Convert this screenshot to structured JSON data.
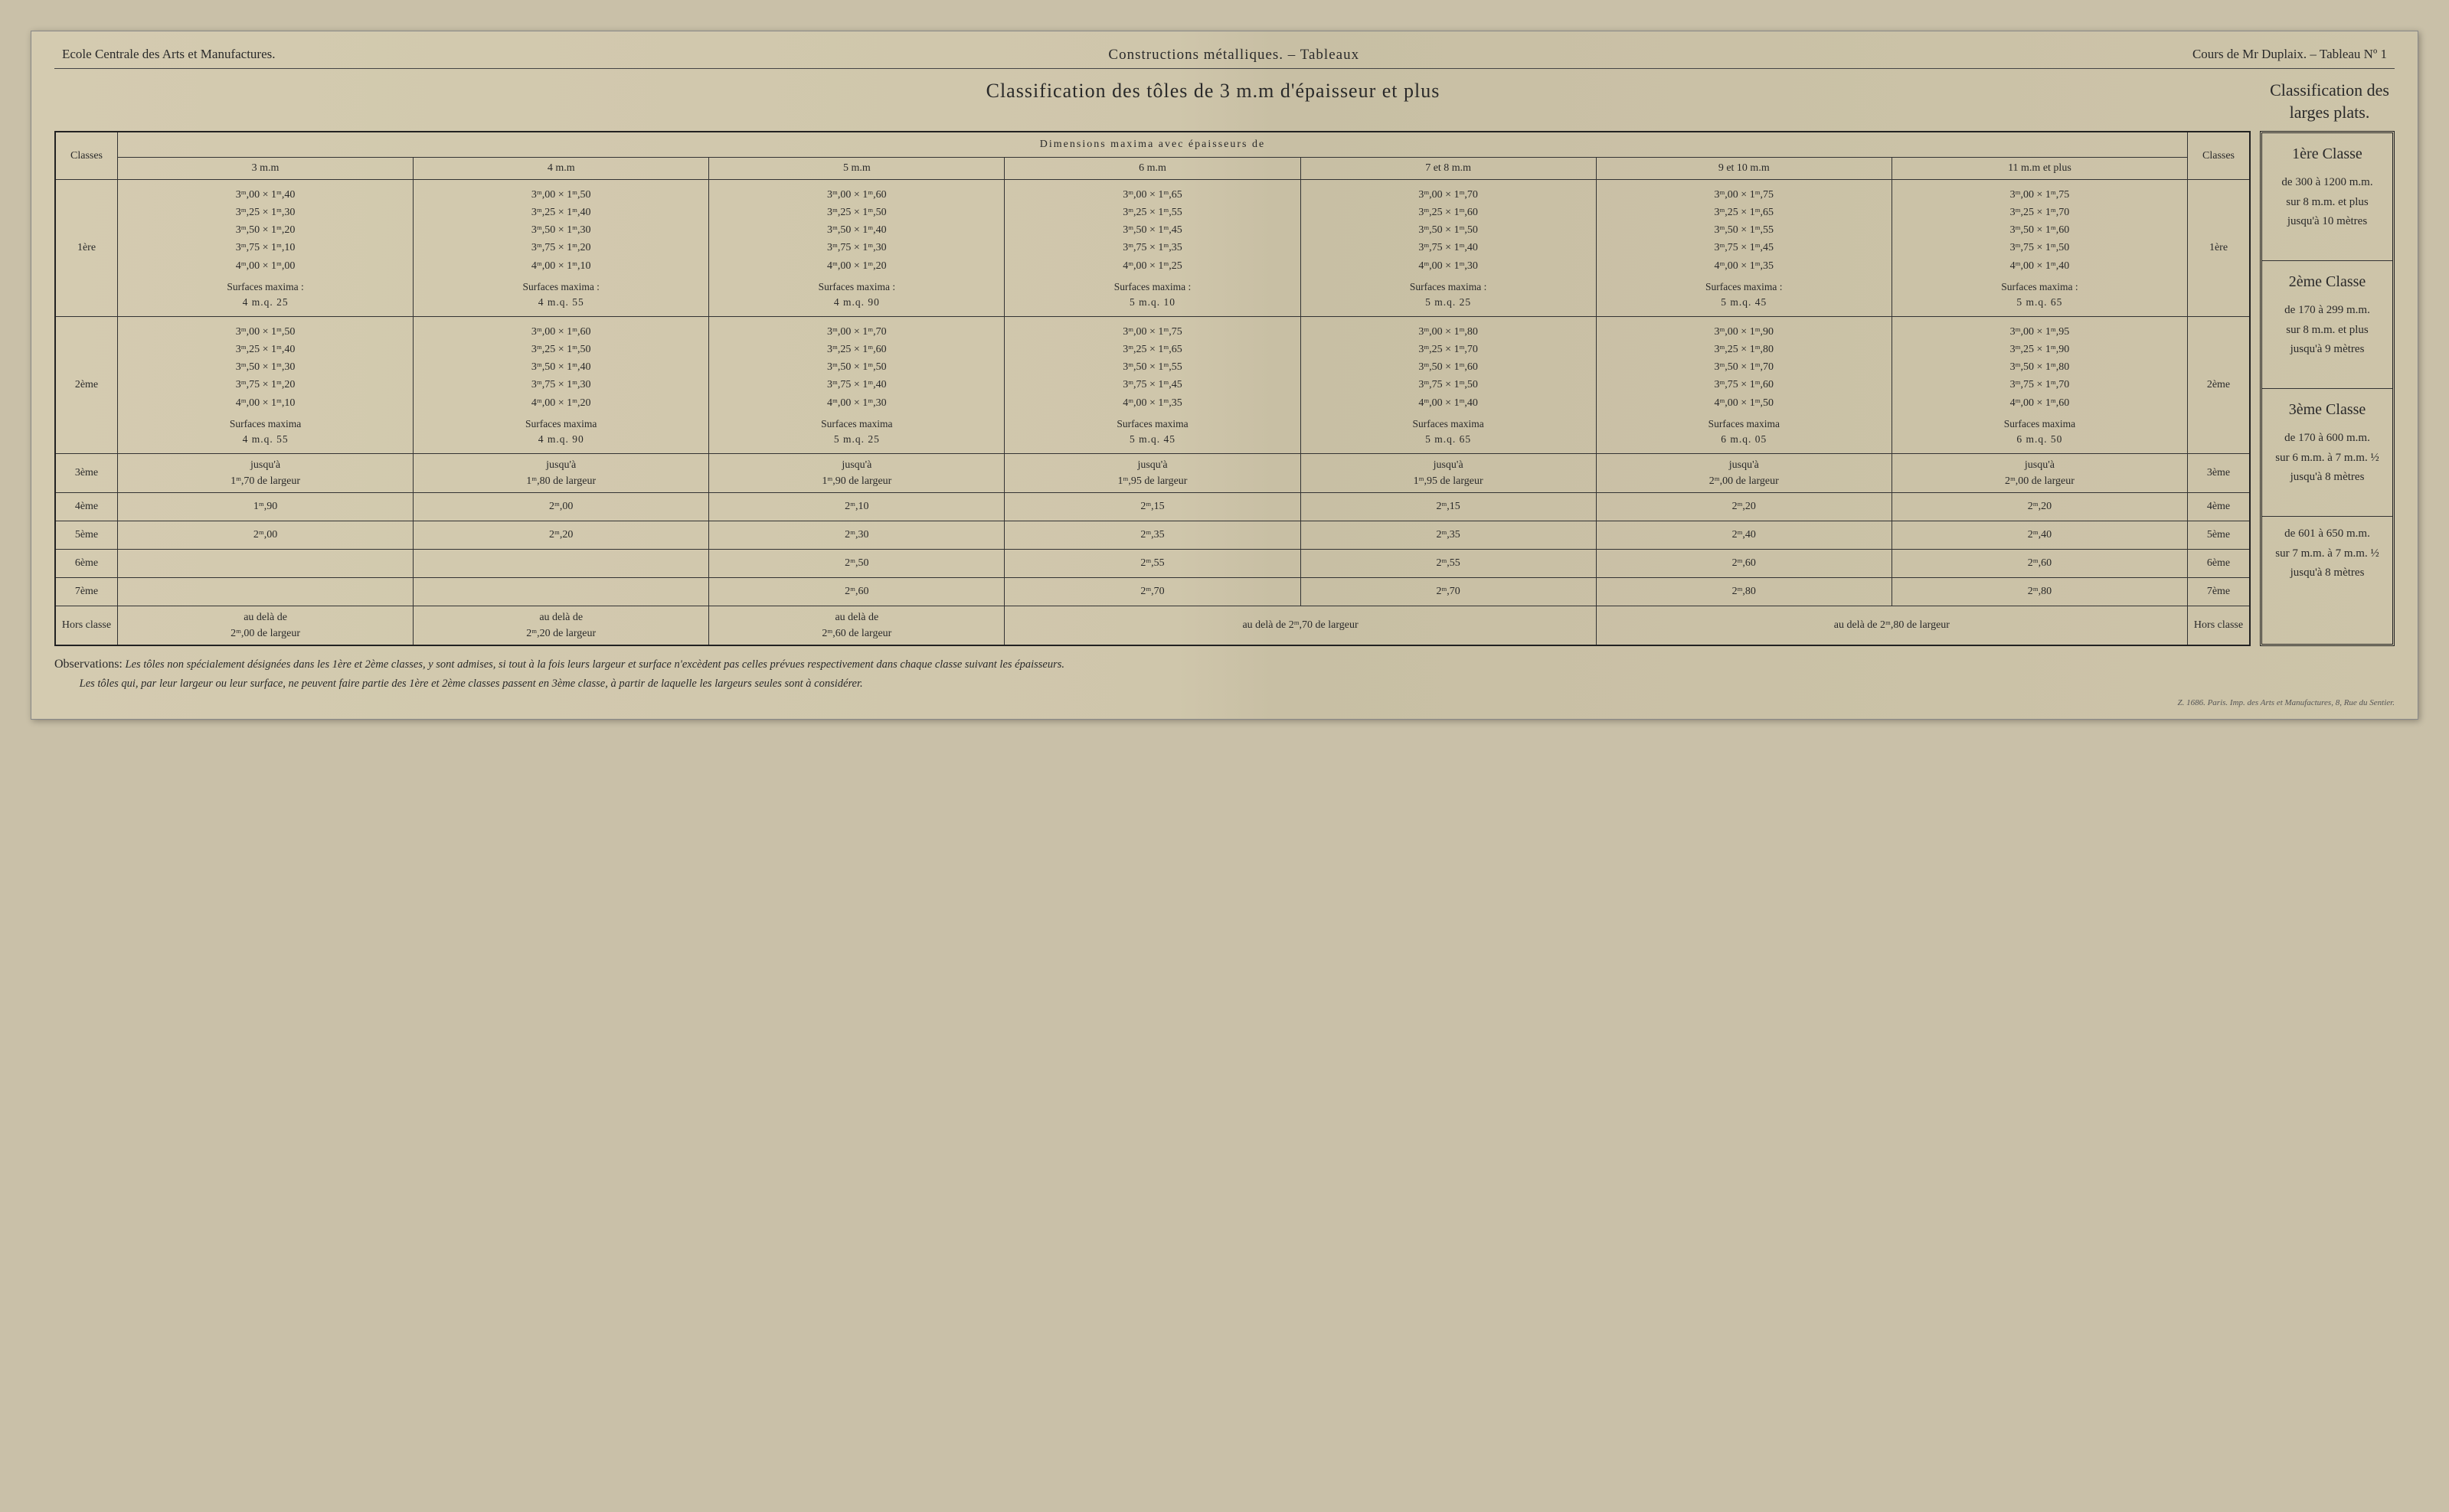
{
  "header": {
    "left": "Ecole Centrale des Arts et Manufactures.",
    "center": "Constructions métalliques. – Tableaux",
    "right": "Cours de Mr Duplaix. – Tableau Nº 1"
  },
  "titles": {
    "main": "Classification des tôles de 3 m.m d'épaisseur et plus",
    "side": "Classification des larges plats."
  },
  "table": {
    "classes_header": "Classes",
    "dimensions_header": "Dimensions maxima avec épaisseurs de",
    "thickness_cols": [
      "3 m.m",
      "4 m.m",
      "5 m.m",
      "6 m.m",
      "7 et 8 m.m",
      "9 et 10 m.m",
      "11 m.m et plus"
    ],
    "class_labels": [
      "1ère",
      "2ème",
      "3ème",
      "4ème",
      "5ème",
      "6ème",
      "7ème"
    ],
    "hors_classe_label": "Hors classe",
    "row1": {
      "cells": [
        {
          "dims": [
            "3ᵐ,00 × 1ᵐ,40",
            "3ᵐ,25 × 1ᵐ,30",
            "3ᵐ,50 × 1ᵐ,20",
            "3ᵐ,75 × 1ᵐ,10",
            "4ᵐ,00 × 1ᵐ,00"
          ],
          "surf": "Surfaces maxima :",
          "mq": "4 m.q. 25"
        },
        {
          "dims": [
            "3ᵐ,00 × 1ᵐ,50",
            "3ᵐ,25 × 1ᵐ,40",
            "3ᵐ,50 × 1ᵐ,30",
            "3ᵐ,75 × 1ᵐ,20",
            "4ᵐ,00 × 1ᵐ,10"
          ],
          "surf": "Surfaces maxima :",
          "mq": "4 m.q. 55"
        },
        {
          "dims": [
            "3ᵐ,00 × 1ᵐ,60",
            "3ᵐ,25 × 1ᵐ,50",
            "3ᵐ,50 × 1ᵐ,40",
            "3ᵐ,75 × 1ᵐ,30",
            "4ᵐ,00 × 1ᵐ,20"
          ],
          "surf": "Surfaces maxima :",
          "mq": "4 m.q. 90"
        },
        {
          "dims": [
            "3ᵐ,00 × 1ᵐ,65",
            "3ᵐ,25 × 1ᵐ,55",
            "3ᵐ,50 × 1ᵐ,45",
            "3ᵐ,75 × 1ᵐ,35",
            "4ᵐ,00 × 1ᵐ,25"
          ],
          "surf": "Surfaces maxima :",
          "mq": "5 m.q. 10"
        },
        {
          "dims": [
            "3ᵐ,00 × 1ᵐ,70",
            "3ᵐ,25 × 1ᵐ,60",
            "3ᵐ,50 × 1ᵐ,50",
            "3ᵐ,75 × 1ᵐ,40",
            "4ᵐ,00 × 1ᵐ,30"
          ],
          "surf": "Surfaces maxima :",
          "mq": "5 m.q. 25"
        },
        {
          "dims": [
            "3ᵐ,00 × 1ᵐ,75",
            "3ᵐ,25 × 1ᵐ,65",
            "3ᵐ,50 × 1ᵐ,55",
            "3ᵐ,75 × 1ᵐ,45",
            "4ᵐ,00 × 1ᵐ,35"
          ],
          "surf": "Surfaces maxima :",
          "mq": "5 m.q. 45"
        },
        {
          "dims": [
            "3ᵐ,00 × 1ᵐ,75",
            "3ᵐ,25 × 1ᵐ,70",
            "3ᵐ,50 × 1ᵐ,60",
            "3ᵐ,75 × 1ᵐ,50",
            "4ᵐ,00 × 1ᵐ,40"
          ],
          "surf": "Surfaces maxima :",
          "mq": "5 m.q. 65"
        }
      ]
    },
    "row2": {
      "cells": [
        {
          "dims": [
            "3ᵐ,00 × 1ᵐ,50",
            "3ᵐ,25 × 1ᵐ,40",
            "3ᵐ,50 × 1ᵐ,30",
            "3ᵐ,75 × 1ᵐ,20",
            "4ᵐ,00 × 1ᵐ,10"
          ],
          "surf": "Surfaces maxima",
          "mq": "4 m.q. 55"
        },
        {
          "dims": [
            "3ᵐ,00 × 1ᵐ,60",
            "3ᵐ,25 × 1ᵐ,50",
            "3ᵐ,50 × 1ᵐ,40",
            "3ᵐ,75 × 1ᵐ,30",
            "4ᵐ,00 × 1ᵐ,20"
          ],
          "surf": "Surfaces maxima",
          "mq": "4 m.q. 90"
        },
        {
          "dims": [
            "3ᵐ,00 × 1ᵐ,70",
            "3ᵐ,25 × 1ᵐ,60",
            "3ᵐ,50 × 1ᵐ,50",
            "3ᵐ,75 × 1ᵐ,40",
            "4ᵐ,00 × 1ᵐ,30"
          ],
          "surf": "Surfaces maxima",
          "mq": "5 m.q. 25"
        },
        {
          "dims": [
            "3ᵐ,00 × 1ᵐ,75",
            "3ᵐ,25 × 1ᵐ,65",
            "3ᵐ,50 × 1ᵐ,55",
            "3ᵐ,75 × 1ᵐ,45",
            "4ᵐ,00 × 1ᵐ,35"
          ],
          "surf": "Surfaces maxima",
          "mq": "5 m.q. 45"
        },
        {
          "dims": [
            "3ᵐ,00 × 1ᵐ,80",
            "3ᵐ,25 × 1ᵐ,70",
            "3ᵐ,50 × 1ᵐ,60",
            "3ᵐ,75 × 1ᵐ,50",
            "4ᵐ,00 × 1ᵐ,40"
          ],
          "surf": "Surfaces maxima",
          "mq": "5 m.q. 65"
        },
        {
          "dims": [
            "3ᵐ,00 × 1ᵐ,90",
            "3ᵐ,25 × 1ᵐ,80",
            "3ᵐ,50 × 1ᵐ,70",
            "3ᵐ,75 × 1ᵐ,60",
            "4ᵐ,00 × 1ᵐ,50"
          ],
          "surf": "Surfaces maxima",
          "mq": "6 m.q. 05"
        },
        {
          "dims": [
            "3ᵐ,00 × 1ᵐ,95",
            "3ᵐ,25 × 1ᵐ,90",
            "3ᵐ,50 × 1ᵐ,80",
            "3ᵐ,75 × 1ᵐ,70",
            "4ᵐ,00 × 1ᵐ,60"
          ],
          "surf": "Surfaces maxima",
          "mq": "6 m.q. 50"
        }
      ]
    },
    "row3": {
      "prefix": "jusqu'à",
      "vals": [
        "1ᵐ,70 de largeur",
        "1ᵐ,80 de largeur",
        "1ᵐ,90 de largeur",
        "1ᵐ,95 de largeur",
        "1ᵐ,95 de largeur",
        "2ᵐ,00 de largeur",
        "2ᵐ,00 de largeur"
      ]
    },
    "row4": [
      "1ᵐ,90",
      "2ᵐ,00",
      "2ᵐ,10",
      "2ᵐ,15",
      "2ᵐ,15",
      "2ᵐ,20",
      "2ᵐ,20"
    ],
    "row5": [
      "2ᵐ,00",
      "2ᵐ,20",
      "2ᵐ,30",
      "2ᵐ,35",
      "2ᵐ,35",
      "2ᵐ,40",
      "2ᵐ,40"
    ],
    "row6": [
      "",
      "",
      "2ᵐ,50",
      "2ᵐ,55",
      "2ᵐ,55",
      "2ᵐ,60",
      "2ᵐ,60"
    ],
    "row7": [
      "",
      "",
      "2ᵐ,60",
      "2ᵐ,70",
      "2ᵐ,70",
      "2ᵐ,80",
      "2ᵐ,80"
    ],
    "hors": {
      "prefix": "au delà de",
      "c1": "2ᵐ,00 de largeur",
      "c2": "2ᵐ,20 de largeur",
      "c3": "2ᵐ,60 de largeur",
      "merged45": "au delà de 2ᵐ,70 de largeur",
      "merged67": "au delà de 2ᵐ,80 de largeur"
    }
  },
  "side": {
    "c1": {
      "title": "1ère Classe",
      "l1": "de 300 à 1200 m.m.",
      "l2": "sur 8 m.m. et plus",
      "l3": "jusqu'à 10 mètres"
    },
    "c2": {
      "title": "2ème Classe",
      "l1": "de 170 à 299 m.m.",
      "l2": "sur 8 m.m. et plus",
      "l3": "jusqu'à 9 mètres"
    },
    "c3": {
      "title": "3ème Classe",
      "l1": "de 170 à 600 m.m.",
      "l2": "sur 6 m.m. à 7 m.m. ½",
      "l3": "jusqu'à 8 mètres"
    },
    "c4": {
      "l1": "de 601 à 650 m.m.",
      "l2": "sur 7 m.m. à 7 m.m. ½",
      "l3": "jusqu'à 8 mètres"
    }
  },
  "observations": {
    "label": "Observations:",
    "line1": "Les tôles non spécialement désignées dans les 1ère et 2ème classes, y sont admises, si tout à la fois leurs largeur et surface n'excèdent pas celles prévues respectivement dans chaque classe suivant les épaisseurs.",
    "line2": "Les tôles qui, par leur largeur ou leur surface, ne peuvent faire partie des 1ère et 2ème classes passent en 3ème classe, à partir de laquelle les largeurs seules sont à considérer."
  },
  "footer": "Z. 1686. Paris. Imp. des Arts et Manufactures, 8, Rue du Sentier."
}
